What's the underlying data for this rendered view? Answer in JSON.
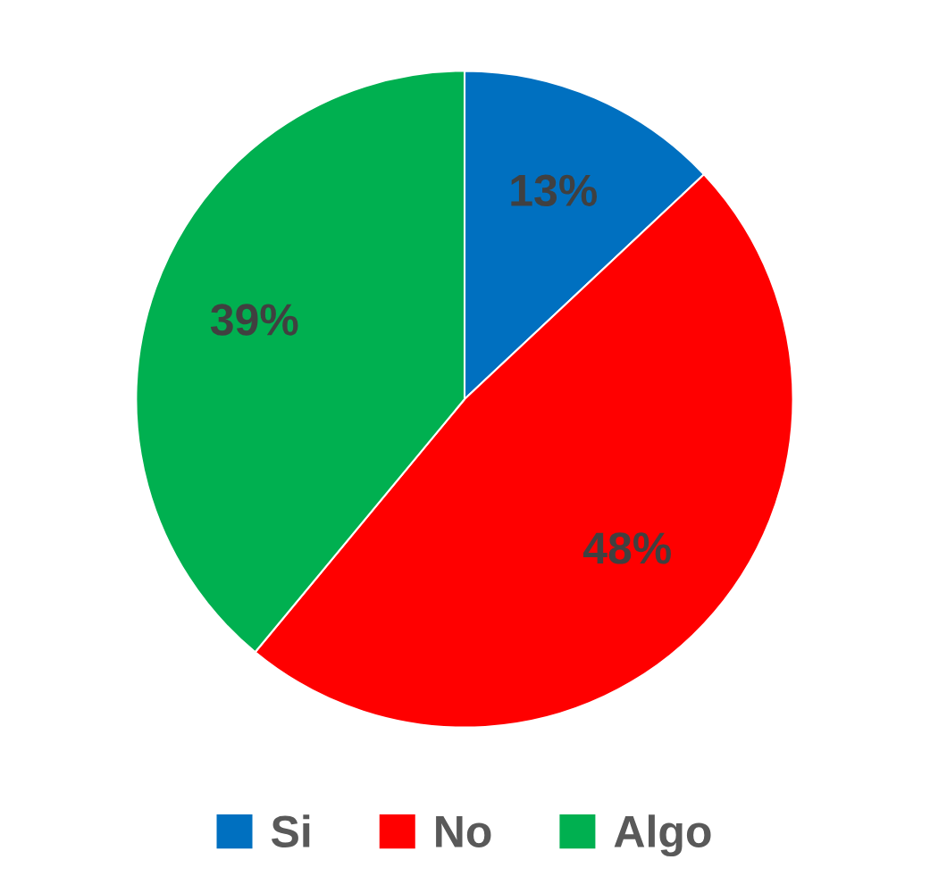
{
  "chart_data": {
    "type": "pie",
    "categories": [
      "Si",
      "No",
      "Algo"
    ],
    "values": [
      13,
      48,
      39
    ],
    "colors": [
      "#0070c0",
      "#ff0000",
      "#00b050"
    ],
    "value_labels": [
      "13%",
      "48%",
      "39%"
    ],
    "legend": "bottom"
  }
}
